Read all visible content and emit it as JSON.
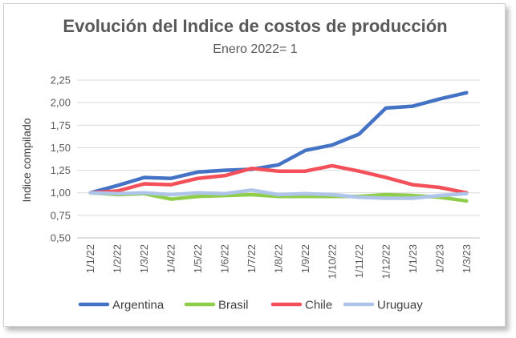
{
  "chart_data": {
    "type": "line",
    "title": "Evolución del Indice de costos de producción",
    "subtitle": "Enero 2022= 1",
    "ylabel": "Indice compilado",
    "xlabel": "",
    "ylim": [
      0.5,
      2.25
    ],
    "yticks": [
      "0,50",
      "0,75",
      "1,00",
      "1,25",
      "1,50",
      "1,75",
      "2,00",
      "2,25"
    ],
    "yticks_values": [
      0.5,
      0.75,
      1.0,
      1.25,
      1.5,
      1.75,
      2.0,
      2.25
    ],
    "grid": true,
    "legend_position": "bottom",
    "categories": [
      "1/1/22",
      "1/2/22",
      "1/3/22",
      "1/4/22",
      "1/5/22",
      "1/6/22",
      "1/7/22",
      "1/8/22",
      "1/9/22",
      "1/10/22",
      "1/11/22",
      "1/12/22",
      "1/1/23",
      "1/2/23",
      "1/3/23"
    ],
    "series": [
      {
        "name": "Argentina",
        "color": "#4472c4",
        "values": [
          1.0,
          1.08,
          1.17,
          1.16,
          1.23,
          1.25,
          1.26,
          1.31,
          1.47,
          1.53,
          1.65,
          1.94,
          1.96,
          2.04,
          2.11
        ]
      },
      {
        "name": "Brasil",
        "color": "#8fce4a",
        "values": [
          1.0,
          0.98,
          0.99,
          0.93,
          0.96,
          0.97,
          0.98,
          0.96,
          0.96,
          0.96,
          0.96,
          0.98,
          0.97,
          0.95,
          0.91
        ]
      },
      {
        "name": "Chile",
        "color": "#f4505a",
        "values": [
          1.0,
          1.02,
          1.1,
          1.09,
          1.16,
          1.19,
          1.27,
          1.24,
          1.24,
          1.3,
          1.24,
          1.17,
          1.09,
          1.06,
          1.0
        ]
      },
      {
        "name": "Uruguay",
        "color": "#aec4e8",
        "values": [
          1.0,
          0.99,
          1.0,
          0.98,
          1.0,
          0.99,
          1.03,
          0.98,
          0.99,
          0.98,
          0.95,
          0.94,
          0.94,
          0.97,
          0.99
        ]
      }
    ]
  }
}
